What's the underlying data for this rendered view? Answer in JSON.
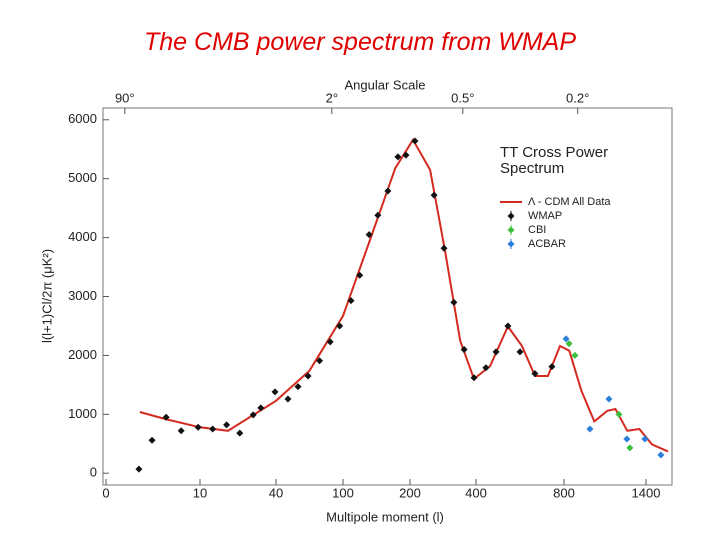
{
  "chart_data": {
    "type": "scatter",
    "title": "The CMB power spectrum from WMAP",
    "x2_label": "Angular Scale",
    "x_label": "Multipole moment (l)",
    "y_label": "l(l+1)Cl/2π (μK²)",
    "legend_title": "TT Cross Power Spectrum",
    "xlim": [
      0,
      1600
    ],
    "xticks": [
      0,
      10,
      40,
      100,
      200,
      400,
      800,
      1400
    ],
    "x2ticks": [
      {
        "value": 90,
        "label": "90°"
      },
      {
        "value": 2,
        "label": "2°"
      },
      {
        "value": 0.5,
        "label": "0.5°"
      },
      {
        "value": 0.2,
        "label": "0.2°"
      }
    ],
    "ylim": [
      -200,
      6200
    ],
    "yticks": [
      0,
      1000,
      2000,
      3000,
      4000,
      5000,
      6000
    ],
    "series": [
      {
        "name": "Λ - CDM All Data",
        "type": "line",
        "color": "#d42a20",
        "x": [
          3.6,
          6.3,
          10,
          21,
          40,
          70,
          100,
          140,
          178,
          209,
          261,
          306,
          352,
          394,
          464,
          545,
          609,
          668,
          727,
          782,
          839,
          927,
          1022,
          1117,
          1176,
          1263,
          1351,
          1444,
          1561
        ],
        "values": [
          1040,
          920,
          780,
          720,
          1230,
          1740,
          2670,
          3950,
          5180,
          5660,
          5150,
          3780,
          2250,
          1600,
          1820,
          2490,
          2160,
          1650,
          1650,
          2160,
          2080,
          1400,
          880,
          1060,
          1090,
          720,
          750,
          490,
          370
        ]
      },
      {
        "name": "WMAP",
        "type": "scatter",
        "color": "#111111",
        "x": [
          3.5,
          4.9,
          6.4,
          8,
          9.8,
          15,
          20.5,
          25.7,
          31,
          34,
          39.6,
          50.7,
          59.7,
          68.7,
          79,
          88.5,
          97,
          112,
          125,
          139,
          152,
          167,
          182,
          194,
          215,
          273,
          303,
          333,
          364,
          394,
          445,
          491,
          545,
          600,
          668,
          745
        ],
        "values": [
          70,
          560,
          950,
          720,
          780,
          750,
          820,
          680,
          990,
          1110,
          1380,
          1260,
          1470,
          1650,
          1910,
          2230,
          2500,
          2930,
          3360,
          4050,
          4380,
          4790,
          5370,
          5400,
          5640,
          4720,
          3820,
          2900,
          2100,
          1620,
          1790,
          2060,
          2500,
          2060,
          1690,
          1810
        ]
      },
      {
        "name": "CBI",
        "type": "scatter",
        "color": "#3cc03c",
        "x": [
          837,
          880,
          1202,
          1282
        ],
        "values": [
          2200,
          2000,
          1000,
          430
        ]
      },
      {
        "name": "ACBAR",
        "type": "scatter",
        "color": "#2a7fd8",
        "x": [
          815,
          990,
          1129,
          1260,
          1392,
          1509
        ],
        "values": [
          2280,
          750,
          1260,
          580,
          580,
          310
        ]
      }
    ]
  }
}
